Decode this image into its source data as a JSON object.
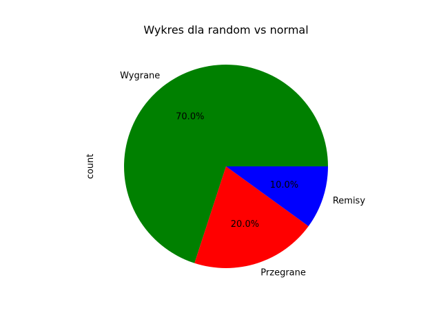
{
  "chart_data": {
    "type": "pie",
    "title": "Wykres dla random vs normal",
    "ylabel": "count",
    "xlabel": "",
    "categories": [
      "Wygrane",
      "Przegrane",
      "Remisy"
    ],
    "values": [
      70,
      20,
      10
    ],
    "percent_labels": [
      "70.0%",
      "20.0%",
      "10.0%"
    ],
    "colors": [
      "#008000",
      "#ff0000",
      "#0000ff"
    ],
    "start_angle_deg": 0,
    "direction": "counterclockwise",
    "legend": "none",
    "grid": false
  }
}
